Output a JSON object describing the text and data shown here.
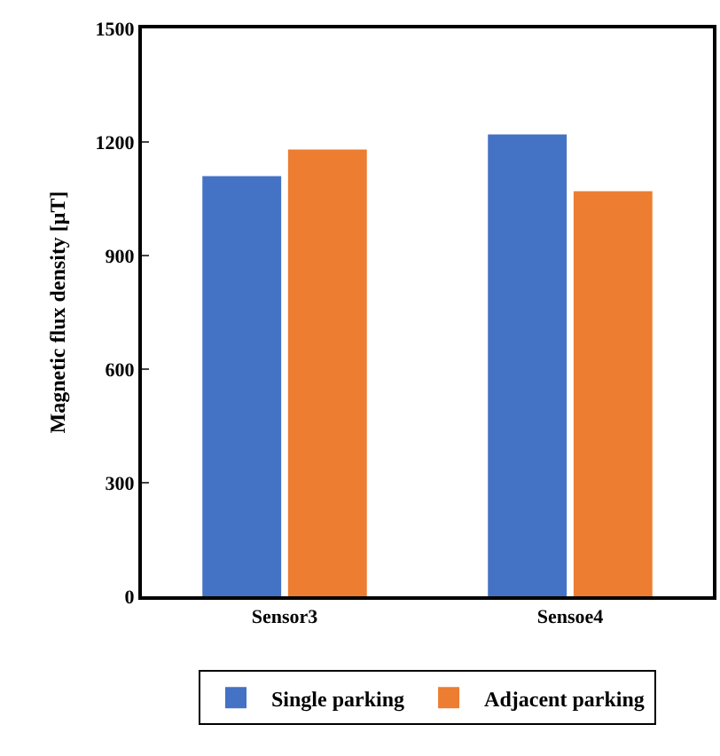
{
  "chart_data": {
    "type": "bar",
    "ylabel": "Magnetic flux density [μT]",
    "categories": [
      "Sensor3",
      "Sensoe4"
    ],
    "series": [
      {
        "name": "Single parking",
        "color": "#4472c4",
        "values": [
          1110,
          1220
        ]
      },
      {
        "name": "Adjacent parking",
        "color": "#ed7d31",
        "values": [
          1180,
          1070
        ]
      }
    ],
    "ylim": [
      0,
      1500
    ],
    "yticks": [
      0,
      300,
      600,
      900,
      1200,
      1500
    ],
    "grid": false,
    "legend": "bottom"
  }
}
